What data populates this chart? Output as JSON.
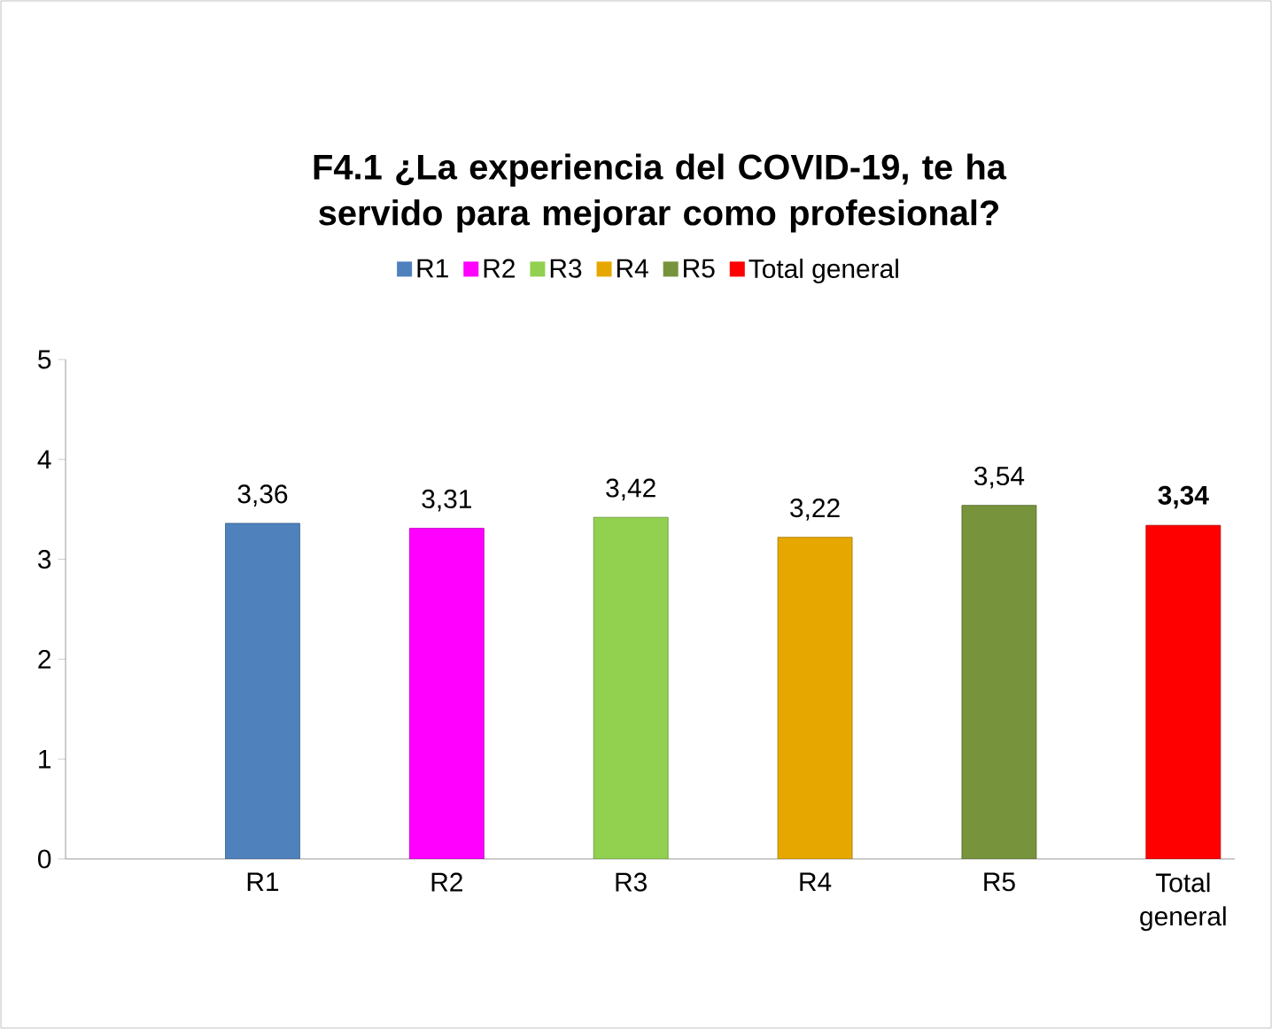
{
  "chart_data": {
    "type": "bar",
    "title": "F4.1 ¿La experiencia del COVID-19, te ha servido para mejorar como profesional?",
    "categories": [
      "R1",
      "R2",
      "R3",
      "R4",
      "R5",
      "Total general"
    ],
    "series": [
      {
        "name": "R1",
        "color": "#4f81bd",
        "values": [
          3.36,
          null,
          null,
          null,
          null,
          null
        ],
        "value_labels": [
          "3,36",
          null,
          null,
          null,
          null,
          null
        ]
      },
      {
        "name": "R2",
        "color": "#ff00ff",
        "values": [
          null,
          3.31,
          null,
          null,
          null,
          null
        ],
        "value_labels": [
          null,
          "3,31",
          null,
          null,
          null,
          null
        ]
      },
      {
        "name": "R3",
        "color": "#92d050",
        "values": [
          null,
          null,
          3.42,
          null,
          null,
          null
        ],
        "value_labels": [
          null,
          null,
          "3,42",
          null,
          null,
          null
        ]
      },
      {
        "name": "R4",
        "color": "#e6a800",
        "values": [
          null,
          null,
          null,
          3.22,
          null,
          null
        ],
        "value_labels": [
          null,
          null,
          null,
          "3,22",
          null,
          null
        ]
      },
      {
        "name": "R5",
        "color": "#77933c",
        "values": [
          null,
          null,
          null,
          null,
          3.54,
          null
        ],
        "value_labels": [
          null,
          null,
          null,
          null,
          "3,54",
          null
        ]
      },
      {
        "name": "Total general",
        "color": "#ff0000",
        "values": [
          null,
          null,
          null,
          null,
          null,
          3.34
        ],
        "value_labels": [
          null,
          null,
          null,
          null,
          null,
          "**3,34**"
        ]
      }
    ],
    "ylim": [
      0,
      5
    ],
    "yticks": [
      0,
      1,
      2,
      3,
      4,
      5
    ],
    "legend": "top"
  }
}
